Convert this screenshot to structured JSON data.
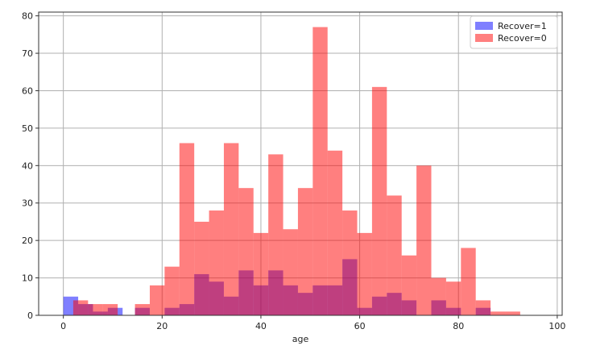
{
  "chart_data": {
    "type": "bar",
    "xlabel": "age",
    "ylabel": "",
    "xlim": [
      -5,
      101
    ],
    "ylim": [
      0,
      81
    ],
    "xticks": [
      0,
      20,
      40,
      60,
      80,
      100
    ],
    "yticks": [
      0,
      10,
      20,
      30,
      40,
      50,
      60,
      70,
      80
    ],
    "grid": true,
    "legend_position": "top-right",
    "series": [
      {
        "name": "Recover=1",
        "color": "#0000ff",
        "opacity": 0.5,
        "bins": [
          {
            "x0": 0,
            "x1": 3,
            "value": 5
          },
          {
            "x0": 3,
            "x1": 6,
            "value": 3
          },
          {
            "x0": 6,
            "x1": 9,
            "value": 1
          },
          {
            "x0": 9,
            "x1": 12,
            "value": 2
          },
          {
            "x0": 14.5,
            "x1": 17.5,
            "value": 2
          },
          {
            "x0": 20.5,
            "x1": 23.5,
            "value": 2
          },
          {
            "x0": 23.5,
            "x1": 26.5,
            "value": 3
          },
          {
            "x0": 26.5,
            "x1": 29.5,
            "value": 11
          },
          {
            "x0": 29.5,
            "x1": 32.5,
            "value": 9
          },
          {
            "x0": 32.5,
            "x1": 35.5,
            "value": 5
          },
          {
            "x0": 35.5,
            "x1": 38.5,
            "value": 12
          },
          {
            "x0": 38.5,
            "x1": 41.5,
            "value": 8
          },
          {
            "x0": 41.5,
            "x1": 44.5,
            "value": 12
          },
          {
            "x0": 44.5,
            "x1": 47.5,
            "value": 8
          },
          {
            "x0": 47.5,
            "x1": 50.5,
            "value": 6
          },
          {
            "x0": 50.5,
            "x1": 53.5,
            "value": 8
          },
          {
            "x0": 53.5,
            "x1": 56.5,
            "value": 8
          },
          {
            "x0": 56.5,
            "x1": 59.5,
            "value": 15
          },
          {
            "x0": 59.5,
            "x1": 62.5,
            "value": 2
          },
          {
            "x0": 62.5,
            "x1": 65.5,
            "value": 5
          },
          {
            "x0": 65.5,
            "x1": 68.5,
            "value": 6
          },
          {
            "x0": 68.5,
            "x1": 71.5,
            "value": 4
          },
          {
            "x0": 71.5,
            "x1": 74.5,
            "value": 0
          },
          {
            "x0": 74.5,
            "x1": 77.5,
            "value": 4
          },
          {
            "x0": 77.5,
            "x1": 80.5,
            "value": 2
          },
          {
            "x0": 80.5,
            "x1": 83.5,
            "value": 0
          },
          {
            "x0": 83.5,
            "x1": 86.5,
            "value": 2
          }
        ]
      },
      {
        "name": "Recover=0",
        "color": "#ff0000",
        "opacity": 0.5,
        "bins": [
          {
            "x0": 2,
            "x1": 5,
            "value": 4
          },
          {
            "x0": 5,
            "x1": 8,
            "value": 3
          },
          {
            "x0": 8,
            "x1": 11,
            "value": 3
          },
          {
            "x0": 14.5,
            "x1": 17.5,
            "value": 3
          },
          {
            "x0": 17.5,
            "x1": 20.5,
            "value": 8
          },
          {
            "x0": 20.5,
            "x1": 23.5,
            "value": 13
          },
          {
            "x0": 23.5,
            "x1": 26.5,
            "value": 46
          },
          {
            "x0": 26.5,
            "x1": 29.5,
            "value": 25
          },
          {
            "x0": 29.5,
            "x1": 32.5,
            "value": 28
          },
          {
            "x0": 32.5,
            "x1": 35.5,
            "value": 46
          },
          {
            "x0": 35.5,
            "x1": 38.5,
            "value": 34
          },
          {
            "x0": 38.5,
            "x1": 41.5,
            "value": 22
          },
          {
            "x0": 41.5,
            "x1": 44.5,
            "value": 43
          },
          {
            "x0": 44.5,
            "x1": 47.5,
            "value": 23
          },
          {
            "x0": 47.5,
            "x1": 50.5,
            "value": 34
          },
          {
            "x0": 50.5,
            "x1": 53.5,
            "value": 77
          },
          {
            "x0": 53.5,
            "x1": 56.5,
            "value": 44
          },
          {
            "x0": 56.5,
            "x1": 59.5,
            "value": 28
          },
          {
            "x0": 59.5,
            "x1": 62.5,
            "value": 22
          },
          {
            "x0": 62.5,
            "x1": 65.5,
            "value": 61
          },
          {
            "x0": 65.5,
            "x1": 68.5,
            "value": 32
          },
          {
            "x0": 68.5,
            "x1": 71.5,
            "value": 16
          },
          {
            "x0": 71.5,
            "x1": 74.5,
            "value": 40
          },
          {
            "x0": 74.5,
            "x1": 77.5,
            "value": 10
          },
          {
            "x0": 77.5,
            "x1": 80.5,
            "value": 9
          },
          {
            "x0": 80.5,
            "x1": 83.5,
            "value": 18
          },
          {
            "x0": 83.5,
            "x1": 86.5,
            "value": 4
          },
          {
            "x0": 86.5,
            "x1": 89.5,
            "value": 1
          },
          {
            "x0": 89.5,
            "x1": 92.5,
            "value": 1
          }
        ]
      }
    ]
  }
}
